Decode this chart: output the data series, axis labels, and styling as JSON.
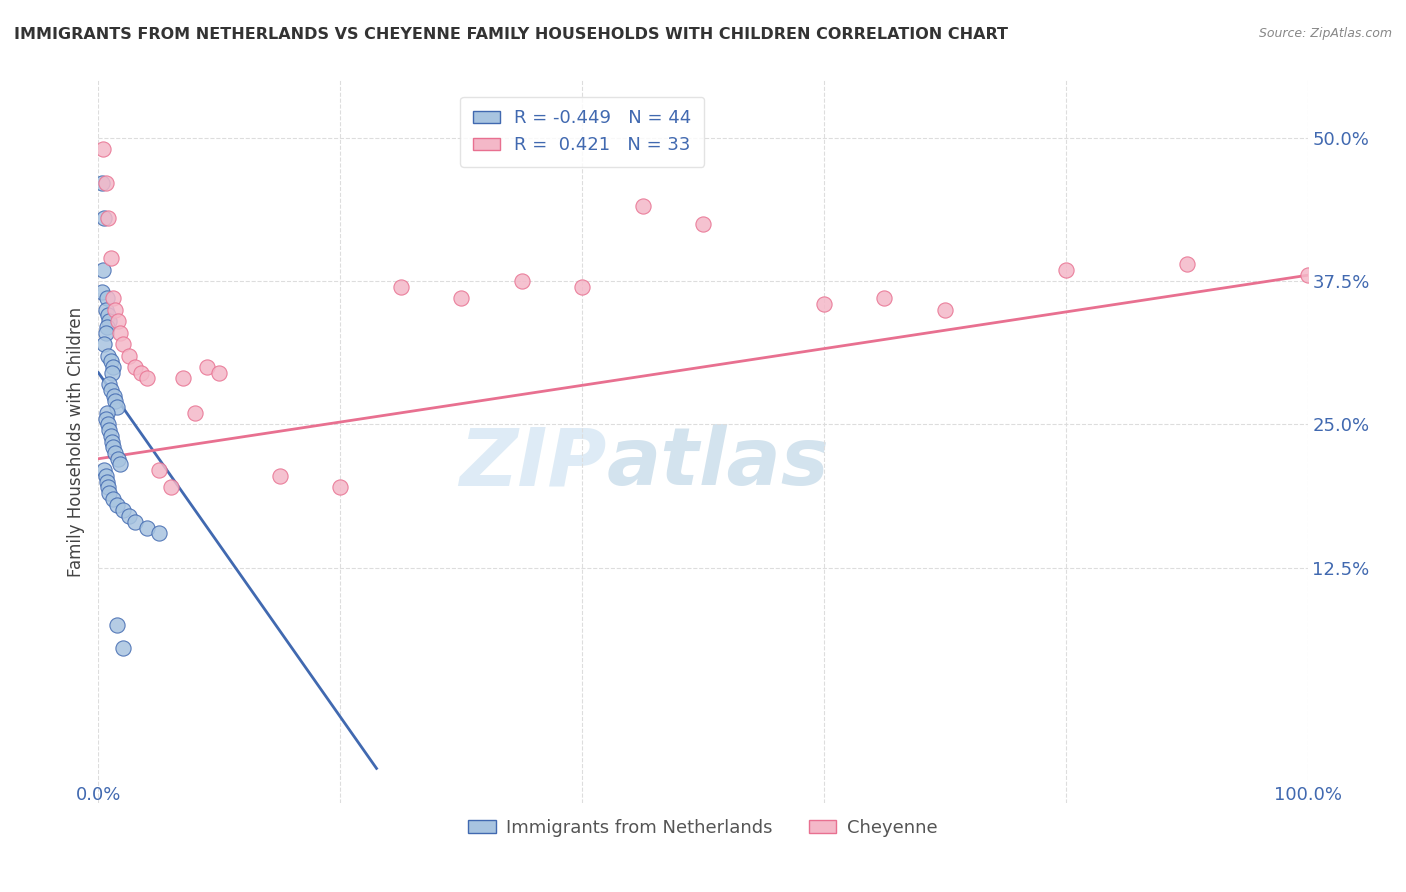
{
  "title": "IMMIGRANTS FROM NETHERLANDS VS CHEYENNE FAMILY HOUSEHOLDS WITH CHILDREN CORRELATION CHART",
  "source": "Source: ZipAtlas.com",
  "ylabel": "Family Households with Children",
  "yticks": [
    "12.5%",
    "25.0%",
    "37.5%",
    "50.0%"
  ],
  "ytick_vals": [
    0.125,
    0.25,
    0.375,
    0.5
  ],
  "legend_blue_r": "-0.449",
  "legend_blue_n": "44",
  "legend_pink_r": "0.421",
  "legend_pink_n": "33",
  "legend_label_blue": "Immigrants from Netherlands",
  "legend_label_pink": "Cheyenne",
  "blue_scatter_x": [
    0.003,
    0.005,
    0.004,
    0.003,
    0.007,
    0.006,
    0.008,
    0.009,
    0.007,
    0.006,
    0.005,
    0.008,
    0.01,
    0.012,
    0.011,
    0.009,
    0.01,
    0.013,
    0.014,
    0.015,
    0.007,
    0.006,
    0.008,
    0.009,
    0.01,
    0.011,
    0.012,
    0.014,
    0.016,
    0.018,
    0.005,
    0.006,
    0.007,
    0.008,
    0.009,
    0.012,
    0.015,
    0.02,
    0.025,
    0.03,
    0.04,
    0.05,
    0.015,
    0.02
  ],
  "blue_scatter_y": [
    0.46,
    0.43,
    0.385,
    0.365,
    0.36,
    0.35,
    0.345,
    0.34,
    0.335,
    0.33,
    0.32,
    0.31,
    0.305,
    0.3,
    0.295,
    0.285,
    0.28,
    0.275,
    0.27,
    0.265,
    0.26,
    0.255,
    0.25,
    0.245,
    0.24,
    0.235,
    0.23,
    0.225,
    0.22,
    0.215,
    0.21,
    0.205,
    0.2,
    0.195,
    0.19,
    0.185,
    0.18,
    0.175,
    0.17,
    0.165,
    0.16,
    0.155,
    0.075,
    0.055
  ],
  "pink_scatter_x": [
    0.004,
    0.006,
    0.008,
    0.01,
    0.012,
    0.014,
    0.016,
    0.018,
    0.02,
    0.025,
    0.03,
    0.035,
    0.04,
    0.05,
    0.06,
    0.07,
    0.08,
    0.09,
    0.1,
    0.15,
    0.2,
    0.25,
    0.3,
    0.35,
    0.4,
    0.45,
    0.5,
    0.6,
    0.65,
    0.7,
    0.8,
    0.9,
    1.0
  ],
  "pink_scatter_y": [
    0.49,
    0.46,
    0.43,
    0.395,
    0.36,
    0.35,
    0.34,
    0.33,
    0.32,
    0.31,
    0.3,
    0.295,
    0.29,
    0.21,
    0.195,
    0.29,
    0.26,
    0.3,
    0.295,
    0.205,
    0.195,
    0.37,
    0.36,
    0.375,
    0.37,
    0.44,
    0.425,
    0.355,
    0.36,
    0.35,
    0.385,
    0.39,
    0.38
  ],
  "blue_line_x": [
    0.0,
    0.23
  ],
  "blue_line_y": [
    0.295,
    -0.05
  ],
  "pink_line_x": [
    0.0,
    1.0
  ],
  "pink_line_y": [
    0.22,
    0.38
  ],
  "blue_color": "#a8c4e0",
  "pink_color": "#f4b8c8",
  "blue_line_color": "#4169b0",
  "pink_line_color": "#e87090",
  "background_color": "#ffffff",
  "grid_color": "#dddddd",
  "xlim": [
    0.0,
    1.0
  ],
  "ylim": [
    -0.08,
    0.55
  ],
  "watermark_zip": "ZIP",
  "watermark_atlas": "atlas"
}
